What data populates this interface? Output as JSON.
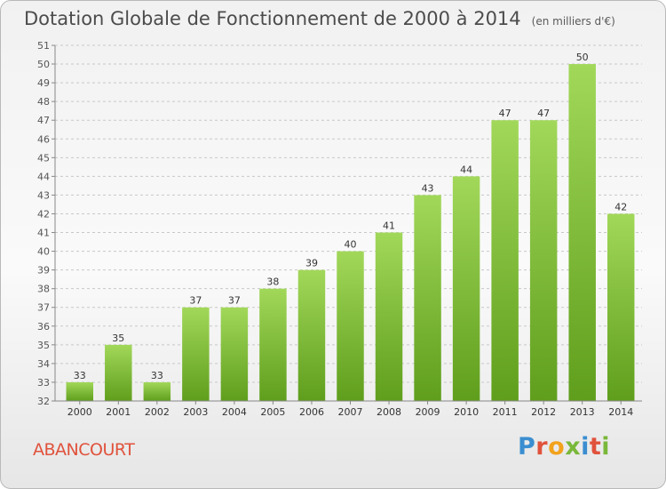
{
  "header": {
    "title": "Dotation Globale de Fonctionnement de 2000 à 2014",
    "subtitle": "(en milliers d'€)"
  },
  "footer": {
    "commune": "ABANCOURT",
    "logo_text": "Proxiti",
    "logo_colors": [
      "#3b8ed0",
      "#e0523c",
      "#f2a21c",
      "#7ab83a",
      "#3b8ed0",
      "#e0523c",
      "#7ab83a"
    ]
  },
  "colors": {
    "bar_light": "#a2d85a",
    "bar_dark": "#5f9e1c",
    "grid": "#c8c8c8"
  },
  "chart_data": {
    "type": "bar",
    "title": "Dotation Globale de Fonctionnement de 2000 à 2014",
    "subtitle": "(en milliers d'€)",
    "categories": [
      "2000",
      "2001",
      "2002",
      "2003",
      "2004",
      "2005",
      "2006",
      "2007",
      "2008",
      "2009",
      "2010",
      "2011",
      "2012",
      "2013",
      "2014"
    ],
    "values": [
      33,
      35,
      33,
      37,
      37,
      38,
      39,
      40,
      41,
      43,
      44,
      47,
      47,
      50,
      42
    ],
    "ylim": [
      32,
      51
    ],
    "yticks": [
      32,
      33,
      34,
      35,
      36,
      37,
      38,
      39,
      40,
      41,
      42,
      43,
      44,
      45,
      46,
      47,
      48,
      49,
      50,
      51
    ],
    "grid": true,
    "data_labels": true
  }
}
